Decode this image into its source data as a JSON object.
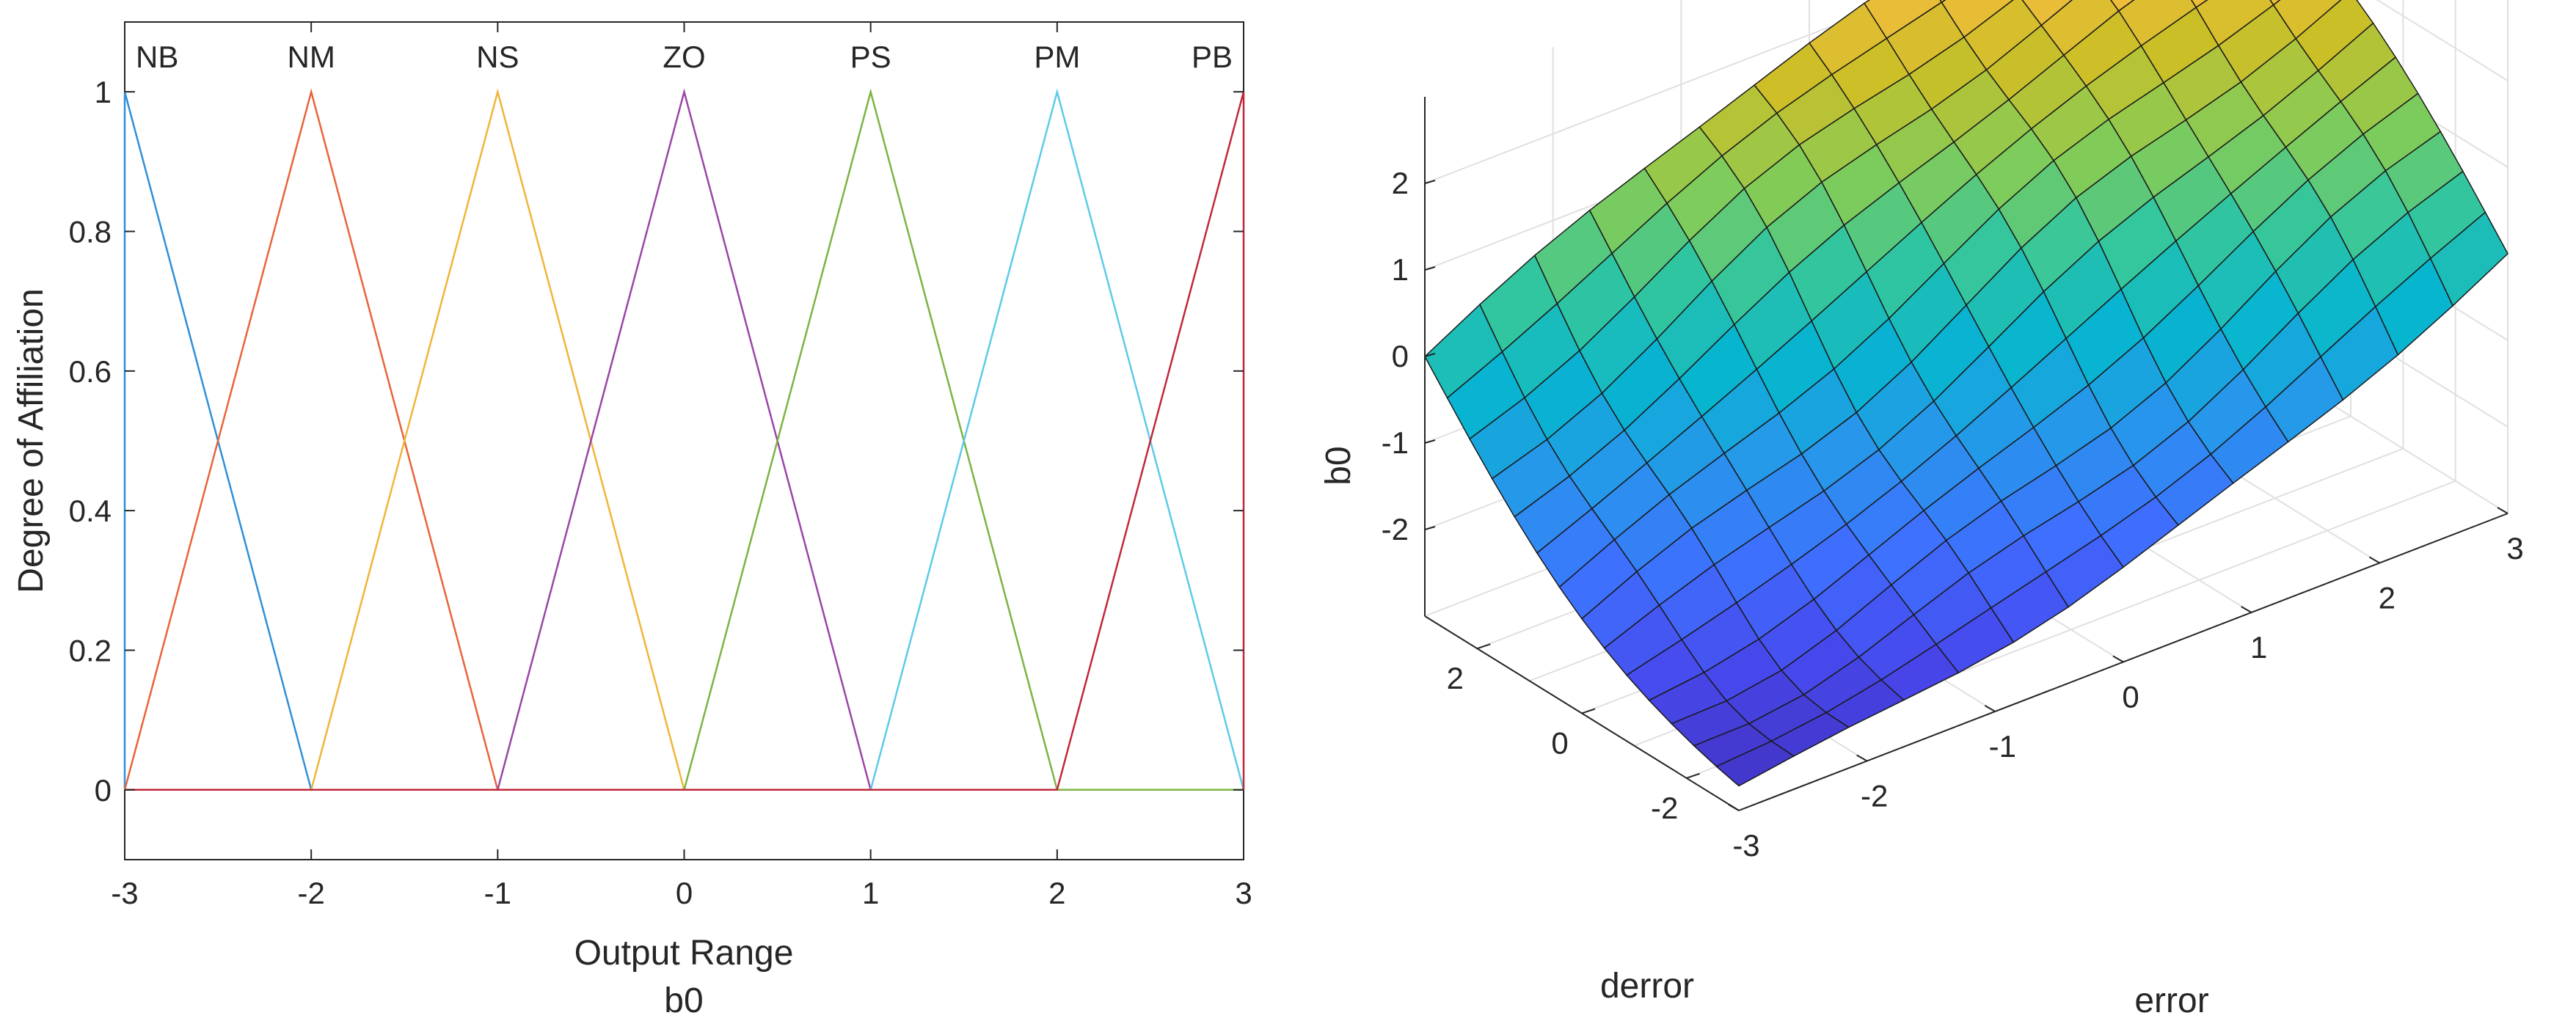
{
  "chart_data": [
    {
      "type": "line",
      "title": "",
      "xlabel": "Output Range",
      "xlabel2": "b0",
      "ylabel": "Degree of Affiliation",
      "xlim": [
        -3,
        3
      ],
      "ylim": [
        -0.1,
        1.1
      ],
      "xticks": [
        "-3",
        "-2",
        "-1",
        "0",
        "1",
        "2",
        "3"
      ],
      "yticks": [
        "0",
        "0.2",
        "0.4",
        "0.6",
        "0.8",
        "1"
      ],
      "grid": false,
      "series": [
        {
          "name": "NB",
          "color": "#2f8fd8",
          "x": [
            -3,
            -3,
            -2,
            3
          ],
          "y": [
            0,
            1,
            0,
            0
          ]
        },
        {
          "name": "NM",
          "color": "#e8643a",
          "x": [
            -3,
            -3,
            -2,
            -1,
            3
          ],
          "y": [
            0,
            0,
            1,
            0,
            0
          ]
        },
        {
          "name": "NS",
          "color": "#f0b53a",
          "x": [
            -3,
            -2,
            -1,
            0,
            3
          ],
          "y": [
            0,
            0,
            1,
            0,
            0
          ]
        },
        {
          "name": "ZO",
          "color": "#9b45a8",
          "x": [
            -3,
            -1,
            0,
            1,
            3
          ],
          "y": [
            0,
            0,
            1,
            0,
            0
          ]
        },
        {
          "name": "PS",
          "color": "#7cb342",
          "x": [
            -3,
            0,
            1,
            2,
            3
          ],
          "y": [
            0,
            0,
            1,
            0,
            0
          ]
        },
        {
          "name": "PM",
          "color": "#5ccbe8",
          "x": [
            -3,
            1,
            2,
            3,
            3
          ],
          "y": [
            0,
            0,
            1,
            0,
            0
          ]
        },
        {
          "name": "PB",
          "color": "#c0283a",
          "x": [
            -3,
            2,
            3,
            3
          ],
          "y": [
            0,
            0,
            1,
            0
          ]
        }
      ]
    },
    {
      "type": "surface",
      "title": "",
      "xlabel": "error",
      "ylabel": "derror",
      "zlabel": "b0",
      "xlim": [
        -3,
        3
      ],
      "ylim": [
        -3,
        3
      ],
      "zlim": [
        -3,
        3
      ],
      "xticks": [
        "-3",
        "-2",
        "-1",
        "0",
        "1",
        "2",
        "3"
      ],
      "yticks": [
        "-2",
        "0",
        "2"
      ],
      "zticks": [
        "-2",
        "-1",
        "0",
        "1",
        "2"
      ],
      "grid": true,
      "colormap": "parula",
      "grid_size": 15,
      "z_min": -3,
      "z_max": 3
    }
  ]
}
